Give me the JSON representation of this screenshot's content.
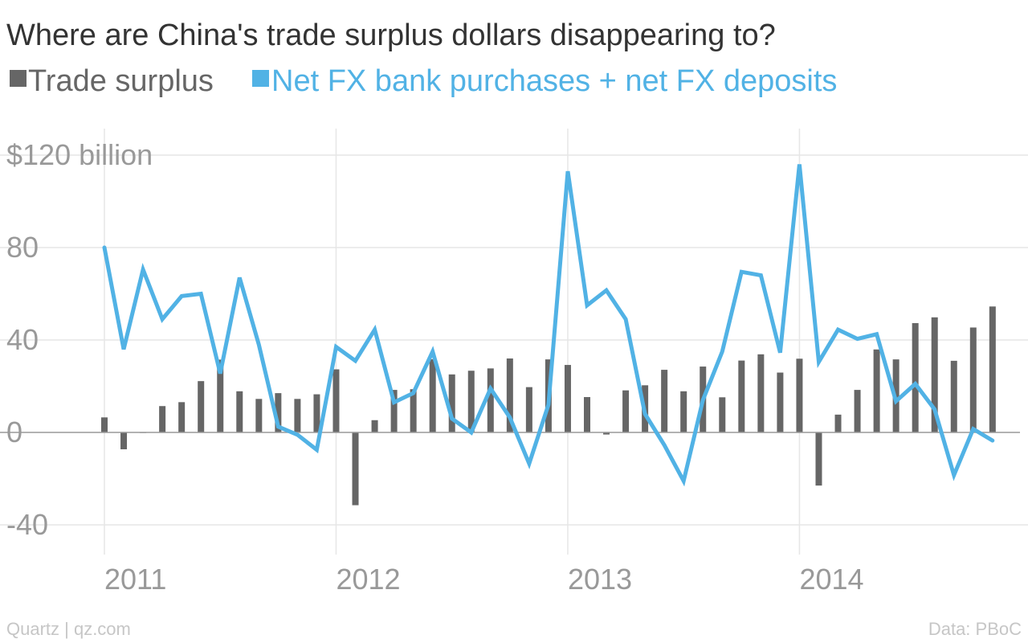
{
  "chart_data": {
    "type": "bar+line",
    "title": "Where are China's trade surplus dollars disappearing to?",
    "credit_left": "Quartz | qz.com",
    "credit_right": "Data: PBoC",
    "colors": {
      "bar": "#666666",
      "line": "#51b2e5",
      "grid": "#e6e6e6",
      "zero": "#999999"
    },
    "ylim": [
      -45,
      125
    ],
    "yticks": [
      {
        "value": 120,
        "label": "$120 billion"
      },
      {
        "value": 80,
        "label": "80"
      },
      {
        "value": 40,
        "label": "40"
      },
      {
        "value": 0,
        "label": "0"
      },
      {
        "value": -40,
        "label": "-40"
      }
    ],
    "xticks": [
      {
        "month_index": 0,
        "label": "2011"
      },
      {
        "month_index": 12,
        "label": "2012"
      },
      {
        "month_index": 24,
        "label": "2013"
      },
      {
        "month_index": 36,
        "label": "2014"
      }
    ],
    "x_start": "2011-01",
    "x_end": "2014-10",
    "series": [
      {
        "name": "Trade surplus",
        "kind": "bar",
        "values": [
          6.5,
          -7.3,
          0.1,
          11.4,
          13.1,
          22.2,
          31.5,
          17.8,
          14.5,
          17.0,
          14.5,
          16.5,
          27.3,
          -31.5,
          5.3,
          18.4,
          18.7,
          31.7,
          25.1,
          26.7,
          27.7,
          32.0,
          19.6,
          31.6,
          29.2,
          15.3,
          -0.9,
          18.2,
          20.4,
          27.1,
          17.8,
          28.5,
          15.2,
          31.1,
          33.8,
          25.9,
          31.9,
          -23.0,
          7.7,
          18.4,
          35.9,
          31.6,
          47.3,
          49.8,
          31.0,
          45.4,
          54.5
        ]
      },
      {
        "name": "Net FX bank purchases + net FX deposits",
        "kind": "line",
        "values": [
          80.0,
          36.0,
          70.5,
          49.0,
          59.0,
          60.0,
          25.5,
          67.0,
          38.0,
          2.5,
          -1.0,
          -7.5,
          37.0,
          31.0,
          44.5,
          13.0,
          17.0,
          35.0,
          6.0,
          0.0,
          19.0,
          6.5,
          -13.5,
          12.0,
          113.0,
          55.0,
          61.5,
          49.0,
          8.0,
          -5.5,
          -21.0,
          14.0,
          35.0,
          69.5,
          68.0,
          34.5,
          116.0,
          30.5,
          44.5,
          40.5,
          42.5,
          13.5,
          21.0,
          10.0,
          -18.5,
          1.5,
          -3.5
        ]
      }
    ]
  }
}
